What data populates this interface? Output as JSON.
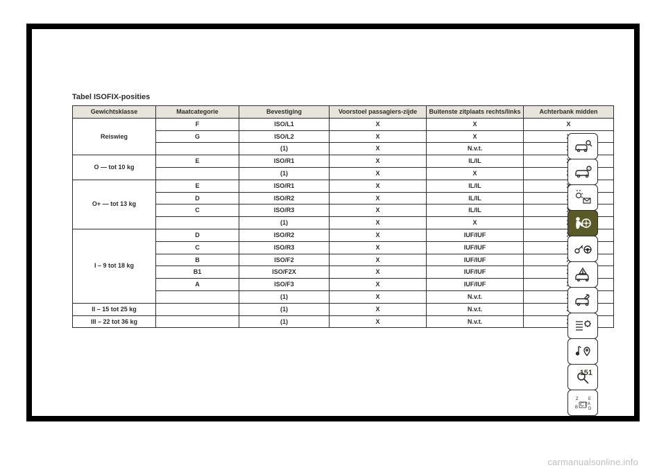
{
  "title": "Tabel ISOFIX-posities",
  "page_number": "151",
  "watermark": "carmanualsonline.info",
  "colors": {
    "header_bg": "#e6e4db",
    "border": "#2b2b2b",
    "text": "#2b2b2b",
    "active_icon_bg": "#5a5a28",
    "page_bg": "#ffffff",
    "frame_bg": "#000000"
  },
  "table": {
    "headers": [
      "Gewichtsklasse",
      "Maatcategorie",
      "Bevestiging",
      "Voorstoel passagiers-zijde",
      "Buitenste zitplaats rechts/links",
      "Achterbank midden"
    ],
    "groups": [
      {
        "label": "Reiswieg",
        "rows": [
          [
            "F",
            "ISO/L1",
            "X",
            "X",
            "X"
          ],
          [
            "G",
            "ISO/L2",
            "X",
            "X",
            "X"
          ],
          [
            "",
            "(1)",
            "X",
            "N.v.t.",
            "X"
          ]
        ]
      },
      {
        "label": "O — tot 10 kg",
        "rows": [
          [
            "E",
            "ISO/R1",
            "X",
            "IL/IL",
            "X"
          ],
          [
            "",
            "(1)",
            "X",
            "X",
            "X"
          ]
        ]
      },
      {
        "label": "O+ — tot 13 kg",
        "rows": [
          [
            "E",
            "ISO/R1",
            "X",
            "IL/IL",
            "X"
          ],
          [
            "D",
            "ISO/R2",
            "X",
            "IL/IL",
            "X"
          ],
          [
            "C",
            "ISO/R3",
            "X",
            "IL/IL",
            "X"
          ],
          [
            "",
            "(1)",
            "X",
            "X",
            "X"
          ]
        ]
      },
      {
        "label": "I – 9 tot 18 kg",
        "rows": [
          [
            "D",
            "ISO/R2",
            "X",
            "IUF/IUF",
            "X"
          ],
          [
            "C",
            "ISO/R3",
            "X",
            "IUF/IUF",
            "X"
          ],
          [
            "B",
            "ISO/F2",
            "X",
            "IUF/IUF",
            "X"
          ],
          [
            "B1",
            "ISO/F2X",
            "X",
            "IUF/IUF",
            "X"
          ],
          [
            "A",
            "ISO/F3",
            "X",
            "IUF/IUF",
            "X"
          ],
          [
            "",
            "(1)",
            "X",
            "N.v.t.",
            "X"
          ]
        ]
      },
      {
        "label": "II – 15 tot 25 kg",
        "rows": [
          [
            "",
            "(1)",
            "X",
            "N.v.t.",
            "X"
          ]
        ]
      },
      {
        "label": "III – 22 tot 36 kg",
        "rows": [
          [
            "",
            "(1)",
            "X",
            "N.v.t.",
            "X"
          ]
        ]
      }
    ]
  },
  "sidebar_icons": [
    {
      "name": "car-search-icon",
      "active": false
    },
    {
      "name": "car-info-icon",
      "active": false
    },
    {
      "name": "light-mail-icon",
      "active": false
    },
    {
      "name": "airbag-icon",
      "active": true
    },
    {
      "name": "key-steering-icon",
      "active": false
    },
    {
      "name": "car-warning-icon",
      "active": false
    },
    {
      "name": "car-service-icon",
      "active": false
    },
    {
      "name": "list-settings-icon",
      "active": false
    },
    {
      "name": "music-location-icon",
      "active": false
    },
    {
      "name": "search-icon",
      "active": false
    },
    {
      "name": "alphabet-icon",
      "active": false
    }
  ]
}
